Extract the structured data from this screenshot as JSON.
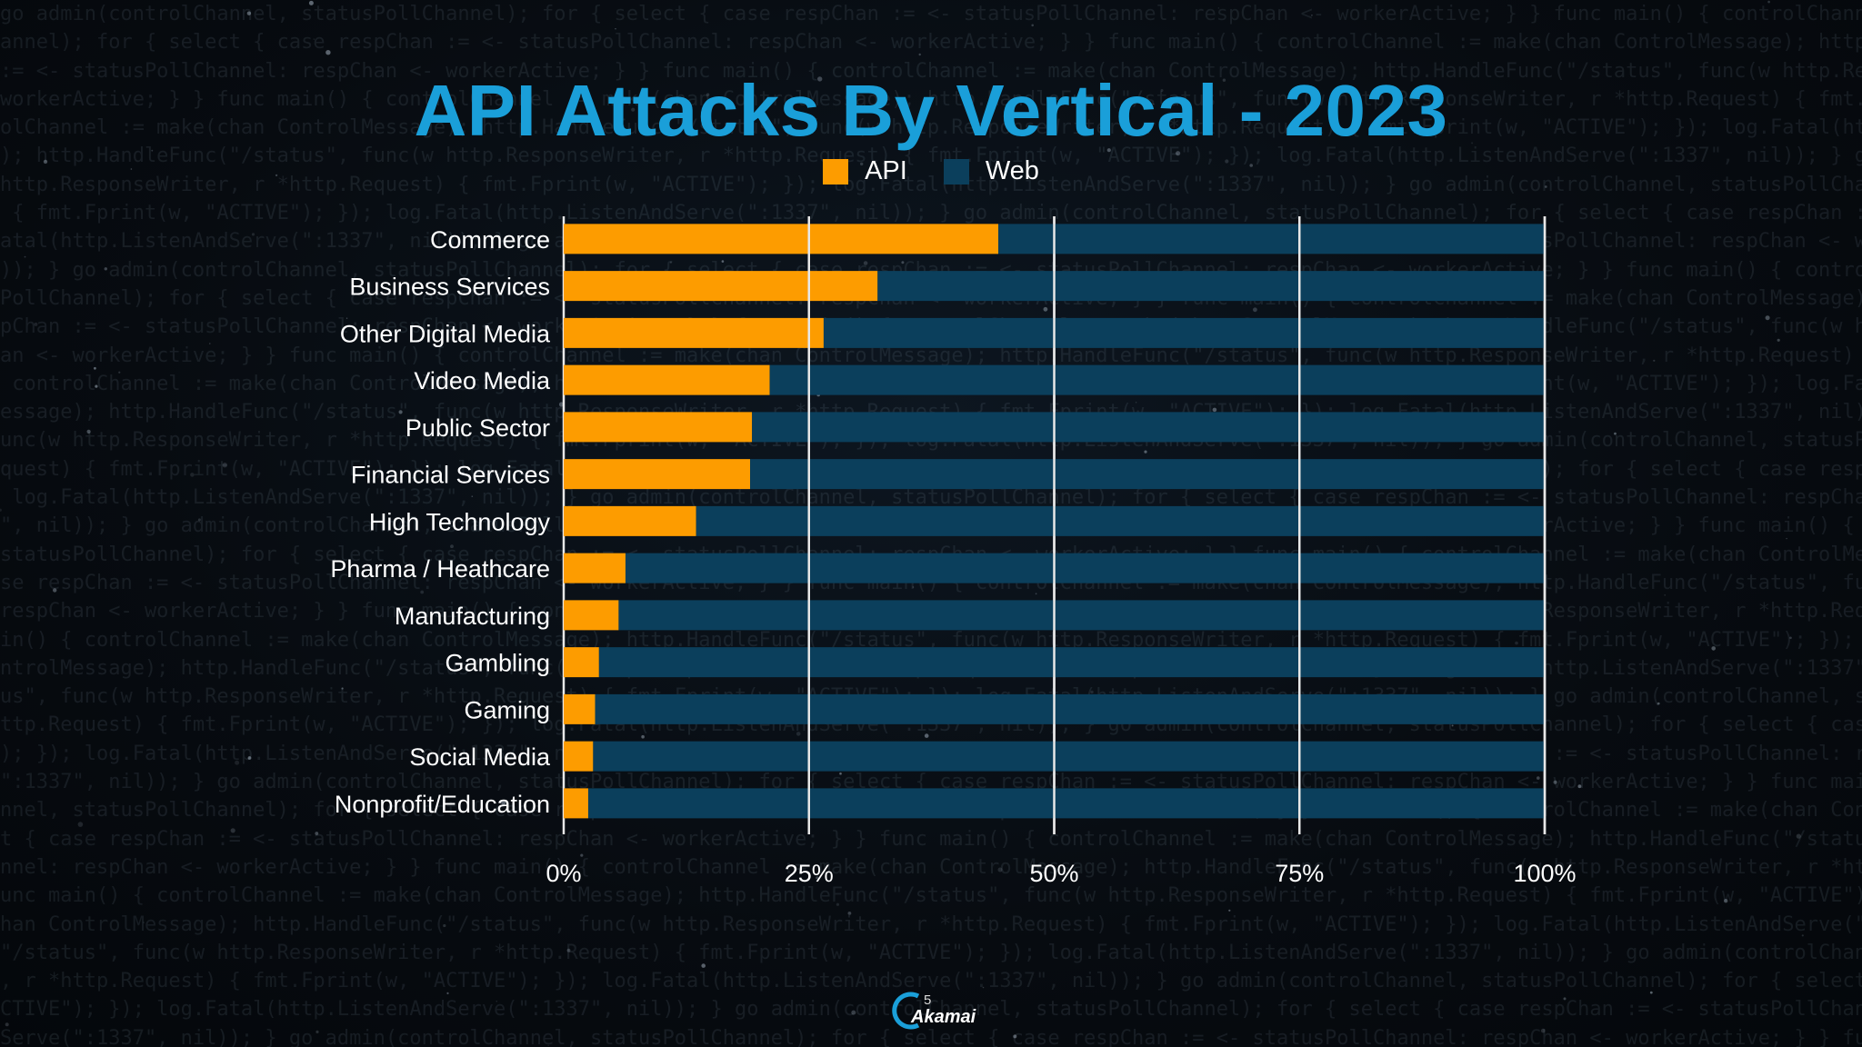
{
  "colors": {
    "title": "#1a9fd9",
    "api": "#fd9c00",
    "web": "#0b3f5c",
    "grid": "#e8e8e8",
    "text": "#ffffff"
  },
  "logo": {
    "text": "Akamai",
    "number": "5"
  },
  "chart_data": {
    "type": "bar",
    "orientation": "horizontal",
    "stacked": true,
    "title": "API Attacks By Vertical - 2023",
    "xlabel": "",
    "ylabel": "",
    "xlim": [
      0,
      100
    ],
    "x_ticks": [
      "0%",
      "25%",
      "50%",
      "75%",
      "100%"
    ],
    "grid": true,
    "legend_position": "top-center",
    "categories": [
      "Commerce",
      "Business Services",
      "Other Digital Media",
      "Video Media",
      "Public Sector",
      "Financial Services",
      "High Technology",
      "Pharma / Heathcare",
      "Manufacturing",
      "Gambling",
      "Gaming",
      "Social Media",
      "Nonprofit/Education"
    ],
    "series": [
      {
        "name": "API",
        "color": "#fd9c00",
        "values": [
          44.3,
          32.0,
          26.5,
          21.0,
          19.2,
          19.0,
          13.5,
          6.3,
          5.6,
          3.6,
          3.2,
          3.0,
          2.5
        ]
      },
      {
        "name": "Web",
        "color": "#0b3f5c",
        "values": [
          55.7,
          68.0,
          73.5,
          79.0,
          80.8,
          81.0,
          86.5,
          93.7,
          94.4,
          96.4,
          96.8,
          97.0,
          97.5
        ]
      }
    ]
  }
}
